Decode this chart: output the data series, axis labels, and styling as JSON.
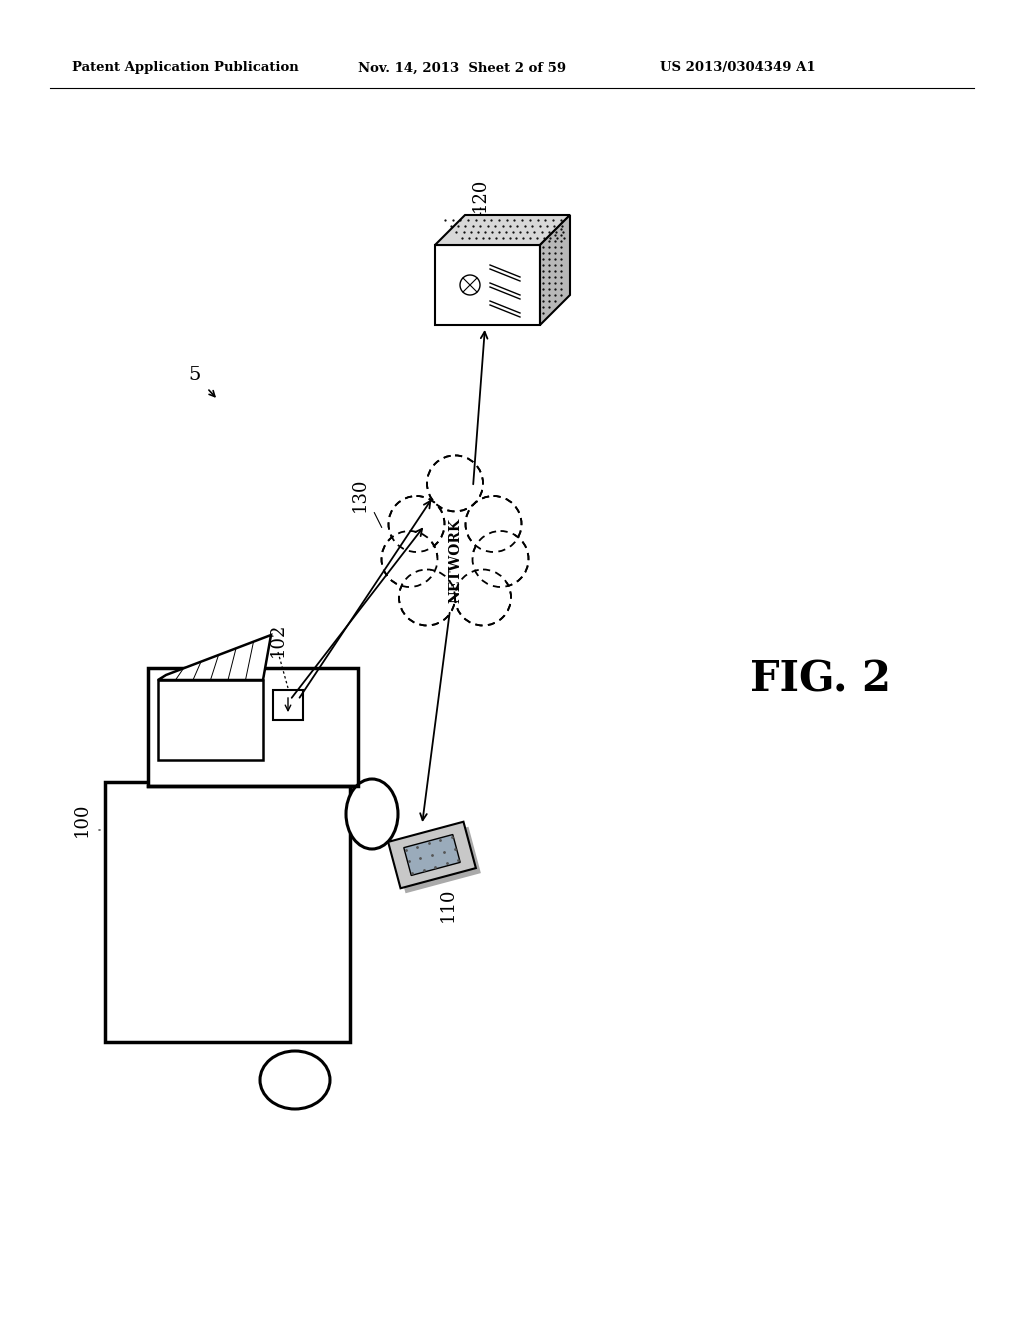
{
  "background_color": "#ffffff",
  "header_left": "Patent Application Publication",
  "header_center": "Nov. 14, 2013  Sheet 2 of 59",
  "header_right": "US 2013/0304349 A1",
  "fig_label": "FIG. 2",
  "diagram_label": "5",
  "label_100": "100",
  "label_102": "102",
  "label_110": "110",
  "label_120": "120",
  "label_130": "130",
  "network_text": "NETWORK"
}
